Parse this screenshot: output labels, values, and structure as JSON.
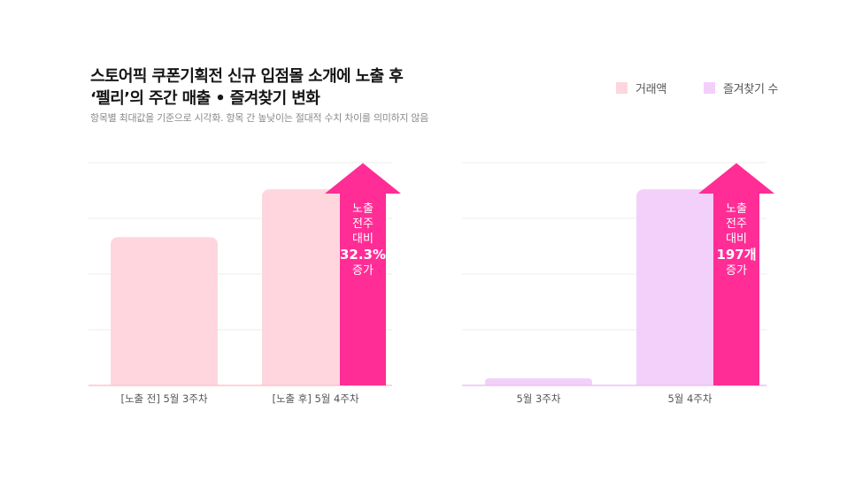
{
  "title": {
    "line1": "스토어픽 쿠폰기획전 신규 입점몰 소개에 노출 후",
    "line2": "‘펠리’의 주간 매출 • 즐겨찾기 변화"
  },
  "subtitle": "항목별 최대값을 기준으로 시각화. 항목 간 높낮이는 절대적 수치 차이를 의미하지 않음",
  "legend": [
    {
      "label": "거래액",
      "color": "#ffd6de"
    },
    {
      "label": "즐겨찾기 수",
      "color": "#f3d0fa"
    }
  ],
  "colors": {
    "sales": "#ffd6de",
    "favorites": "#f3d0fa",
    "arrow": "#ff2d95",
    "grid": "#ececec",
    "baseline_sales": "#ffc2cf",
    "baseline_fav": "#eec0f6"
  },
  "chart_data": [
    {
      "type": "bar",
      "series": [
        {
          "name": "거래액",
          "values": [
            0.756,
            1.0
          ]
        }
      ],
      "categories": [
        "[노출 전] 5월 3주차",
        "[노출 후] 5월 4주차"
      ],
      "ylim": [
        0,
        1.136
      ],
      "grid": true,
      "annotation": {
        "lines": [
          "노출",
          "전주",
          "대비"
        ],
        "highlight": "32.3%",
        "suffix": "증가"
      }
    },
    {
      "type": "bar",
      "series": [
        {
          "name": "즐겨찾기 수",
          "values": [
            0.036,
            1.0
          ]
        }
      ],
      "categories": [
        "5월 3주차",
        "5월 4주차"
      ],
      "ylim": [
        0,
        1.136
      ],
      "grid": true,
      "annotation": {
        "lines": [
          "노출",
          "전주",
          "대비"
        ],
        "highlight": "197개",
        "suffix": "증가"
      }
    }
  ]
}
